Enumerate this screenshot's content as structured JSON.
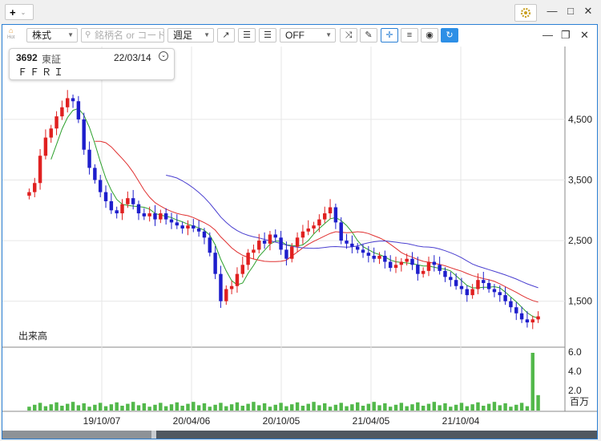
{
  "window": {
    "add_button_label": "+",
    "add_button_caret": "⌄",
    "controls": {
      "minimize": "—",
      "maximize": "□",
      "close": "✕"
    }
  },
  "toolbar": {
    "hot_label": "Hot",
    "asset_type": "株式",
    "search_placeholder": "銘柄名 or コード",
    "period": "週足",
    "indicator": "OFF",
    "panel_controls": {
      "minimize": "—",
      "restore": "❐",
      "close": "✕"
    }
  },
  "info": {
    "code": "3692",
    "market": "東証",
    "date": "22/03/14",
    "name": "ＦＦＲＩ"
  },
  "volume_panel": {
    "label": "出来高",
    "unit": "百万",
    "ticks": [
      "6.0",
      "4.0",
      "2.0"
    ]
  },
  "price_axis": {
    "ticks": [
      "4,500",
      "3,500",
      "2,500",
      "1,500"
    ]
  },
  "x_axis": {
    "ticks": [
      "19/10/07",
      "20/04/06",
      "20/10/05",
      "21/04/05",
      "21/10/04"
    ]
  },
  "colors": {
    "up": "#e02020",
    "down": "#1e1ecc",
    "ma_short": "#2ca02c",
    "ma_mid": "#e03030",
    "ma_long": "#4a3fd0",
    "volume": "#52b84a",
    "accent": "#2a7fd4"
  },
  "chart_data": {
    "type": "candlestick",
    "period": "weekly",
    "ylim": [
      900,
      5200
    ],
    "closes": [
      3300,
      3450,
      3900,
      4200,
      4350,
      4550,
      4700,
      4850,
      4800,
      4500,
      4000,
      3700,
      3500,
      3300,
      3150,
      3000,
      2950,
      3100,
      3200,
      3100,
      2950,
      2900,
      2950,
      2850,
      2950,
      2850,
      2800,
      2750,
      2700,
      2750,
      2700,
      2650,
      2550,
      2300,
      1950,
      1500,
      1700,
      1750,
      1950,
      2100,
      2300,
      2350,
      2500,
      2450,
      2600,
      2550,
      2350,
      2200,
      2400,
      2550,
      2650,
      2700,
      2750,
      2850,
      2950,
      3050,
      2800,
      2500,
      2450,
      2400,
      2350,
      2300,
      2250,
      2200,
      2250,
      2150,
      2050,
      2100,
      2150,
      2200,
      2100,
      1950,
      2000,
      2150,
      2100,
      2000,
      1900,
      1850,
      1750,
      1700,
      1600,
      1700,
      1850,
      1800,
      1700,
      1650,
      1600,
      1500,
      1400,
      1300,
      1200,
      1150,
      1200,
      1250
    ]
  }
}
